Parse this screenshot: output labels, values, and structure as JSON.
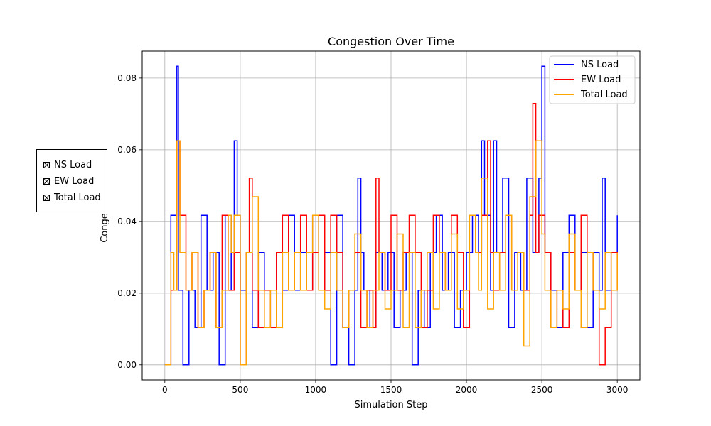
{
  "chart_data": {
    "type": "line",
    "step": true,
    "title": "Congestion Over Time",
    "xlabel": "Simulation Step",
    "ylabel": "Conge",
    "xlim": [
      -150,
      3150
    ],
    "ylim": [
      -0.0042,
      0.0875
    ],
    "xticks": [
      0,
      500,
      1000,
      1500,
      2000,
      2500,
      3000
    ],
    "xtick_labels": [
      "0",
      "500",
      "1000",
      "1500",
      "2000",
      "2500",
      "3000"
    ],
    "yticks": [
      0.0,
      0.02,
      0.04,
      0.06,
      0.08
    ],
    "ytick_labels": [
      "0.00",
      "0.02",
      "0.04",
      "0.06",
      "0.08"
    ],
    "grid": true,
    "legend_position": "top-right",
    "series": [
      {
        "name": "NS Load",
        "color": "#0000ff",
        "x": [
          0,
          40,
          80,
          90,
          120,
          160,
          200,
          240,
          280,
          320,
          360,
          400,
          440,
          460,
          480,
          500,
          540,
          580,
          620,
          660,
          700,
          740,
          780,
          820,
          860,
          900,
          940,
          980,
          1020,
          1060,
          1100,
          1140,
          1180,
          1220,
          1260,
          1280,
          1300,
          1320,
          1360,
          1400,
          1440,
          1480,
          1520,
          1560,
          1600,
          1640,
          1680,
          1720,
          1760,
          1800,
          1840,
          1880,
          1920,
          1960,
          2000,
          2040,
          2080,
          2100,
          2120,
          2160,
          2180,
          2200,
          2240,
          2280,
          2320,
          2360,
          2400,
          2440,
          2480,
          2500,
          2520,
          2560,
          2600,
          2640,
          2680,
          2720,
          2760,
          2800,
          2840,
          2880,
          2900,
          2920,
          2960,
          3000
        ],
        "y": [
          0.0,
          0.0417,
          0.0833,
          0.0208,
          0.0,
          0.0208,
          0.0104,
          0.0417,
          0.0208,
          0.0313,
          0.0,
          0.0417,
          0.0208,
          0.0625,
          0.0417,
          0.0208,
          0.0313,
          0.0104,
          0.0313,
          0.0208,
          0.0104,
          0.0313,
          0.0208,
          0.0417,
          0.0208,
          0.0313,
          0.0208,
          0.0417,
          0.0208,
          0.0313,
          0.0,
          0.0417,
          0.0104,
          0.0,
          0.0208,
          0.0521,
          0.0313,
          0.0208,
          0.0104,
          0.0313,
          0.0208,
          0.0313,
          0.0104,
          0.0208,
          0.0313,
          0.0,
          0.0208,
          0.0104,
          0.0313,
          0.0417,
          0.0208,
          0.0313,
          0.0104,
          0.0208,
          0.0313,
          0.0417,
          0.0313,
          0.0625,
          0.0417,
          0.0208,
          0.0625,
          0.0313,
          0.0521,
          0.0104,
          0.0313,
          0.0208,
          0.0521,
          0.0313,
          0.0521,
          0.0833,
          0.0313,
          0.0208,
          0.0104,
          0.0313,
          0.0417,
          0.0208,
          0.0313,
          0.0104,
          0.0313,
          0.0208,
          0.0521,
          0.0208,
          0.0313,
          0.0417
        ]
      },
      {
        "name": "EW Load",
        "color": "#ff0000",
        "x": [
          0,
          40,
          80,
          100,
          140,
          180,
          220,
          260,
          300,
          340,
          380,
          420,
          460,
          500,
          540,
          560,
          580,
          620,
          660,
          700,
          740,
          780,
          820,
          860,
          900,
          940,
          980,
          1020,
          1060,
          1100,
          1140,
          1180,
          1220,
          1260,
          1300,
          1340,
          1380,
          1400,
          1420,
          1460,
          1500,
          1540,
          1580,
          1620,
          1660,
          1700,
          1740,
          1780,
          1820,
          1860,
          1900,
          1940,
          1980,
          2020,
          2060,
          2100,
          2140,
          2160,
          2180,
          2220,
          2260,
          2300,
          2340,
          2380,
          2420,
          2440,
          2460,
          2480,
          2520,
          2560,
          2600,
          2640,
          2680,
          2720,
          2760,
          2800,
          2840,
          2880,
          2920,
          2960,
          3000
        ],
        "y": [
          0.0,
          0.0208,
          0.0625,
          0.0417,
          0.0208,
          0.0313,
          0.0104,
          0.0208,
          0.0313,
          0.0104,
          0.0417,
          0.0208,
          0.0313,
          0.0,
          0.0313,
          0.0521,
          0.0208,
          0.0104,
          0.0208,
          0.0104,
          0.0313,
          0.0417,
          0.0208,
          0.0313,
          0.0417,
          0.0208,
          0.0313,
          0.0417,
          0.0208,
          0.0417,
          0.0313,
          0.0104,
          0.0208,
          0.0313,
          0.0104,
          0.0208,
          0.0104,
          0.0521,
          0.0313,
          0.0208,
          0.0417,
          0.0208,
          0.0313,
          0.0417,
          0.0313,
          0.0104,
          0.0208,
          0.0417,
          0.0313,
          0.0208,
          0.0417,
          0.0313,
          0.0104,
          0.0417,
          0.0313,
          0.0417,
          0.0625,
          0.0313,
          0.0208,
          0.0313,
          0.0417,
          0.0208,
          0.0313,
          0.0208,
          0.0417,
          0.0729,
          0.0313,
          0.0417,
          0.0313,
          0.0104,
          0.0208,
          0.0104,
          0.0313,
          0.0208,
          0.0417,
          0.0313,
          0.0208,
          0.0,
          0.0104,
          0.0313,
          0.0208
        ]
      },
      {
        "name": "Total Load",
        "color": "#ffa500",
        "x": [
          0,
          40,
          60,
          80,
          100,
          140,
          180,
          220,
          260,
          300,
          340,
          380,
          420,
          440,
          460,
          500,
          540,
          580,
          620,
          660,
          700,
          740,
          780,
          820,
          860,
          900,
          940,
          980,
          1020,
          1060,
          1100,
          1140,
          1180,
          1220,
          1260,
          1300,
          1340,
          1380,
          1420,
          1460,
          1500,
          1540,
          1580,
          1620,
          1660,
          1700,
          1740,
          1780,
          1820,
          1860,
          1900,
          1940,
          1980,
          2020,
          2060,
          2080,
          2100,
          2140,
          2180,
          2220,
          2260,
          2300,
          2340,
          2380,
          2420,
          2460,
          2500,
          2520,
          2560,
          2600,
          2640,
          2680,
          2720,
          2760,
          2800,
          2840,
          2880,
          2920,
          2960,
          3000
        ],
        "y": [
          0.0,
          0.0313,
          0.0208,
          0.0625,
          0.0313,
          0.0208,
          0.0313,
          0.0104,
          0.0208,
          0.0313,
          0.0104,
          0.0208,
          0.0417,
          0.0313,
          0.0417,
          0.0,
          0.0313,
          0.0469,
          0.0208,
          0.0104,
          0.0208,
          0.0104,
          0.0313,
          0.0208,
          0.0313,
          0.0208,
          0.0313,
          0.0417,
          0.0208,
          0.0156,
          0.0313,
          0.0208,
          0.0104,
          0.0208,
          0.0365,
          0.0208,
          0.0104,
          0.0208,
          0.0313,
          0.0156,
          0.0208,
          0.0365,
          0.0104,
          0.0313,
          0.0104,
          0.0208,
          0.0313,
          0.0156,
          0.0313,
          0.0208,
          0.0365,
          0.0156,
          0.0208,
          0.0417,
          0.0313,
          0.0208,
          0.0521,
          0.0156,
          0.0313,
          0.0208,
          0.0417,
          0.0208,
          0.0313,
          0.0052,
          0.0469,
          0.0625,
          0.0365,
          0.0208,
          0.0104,
          0.0208,
          0.0156,
          0.0365,
          0.0208,
          0.0104,
          0.0313,
          0.0208,
          0.0156,
          0.0313,
          0.0208,
          0.0313
        ]
      }
    ]
  },
  "toggle_panel": {
    "items": [
      "NS Load",
      "EW Load",
      "Total Load"
    ]
  }
}
